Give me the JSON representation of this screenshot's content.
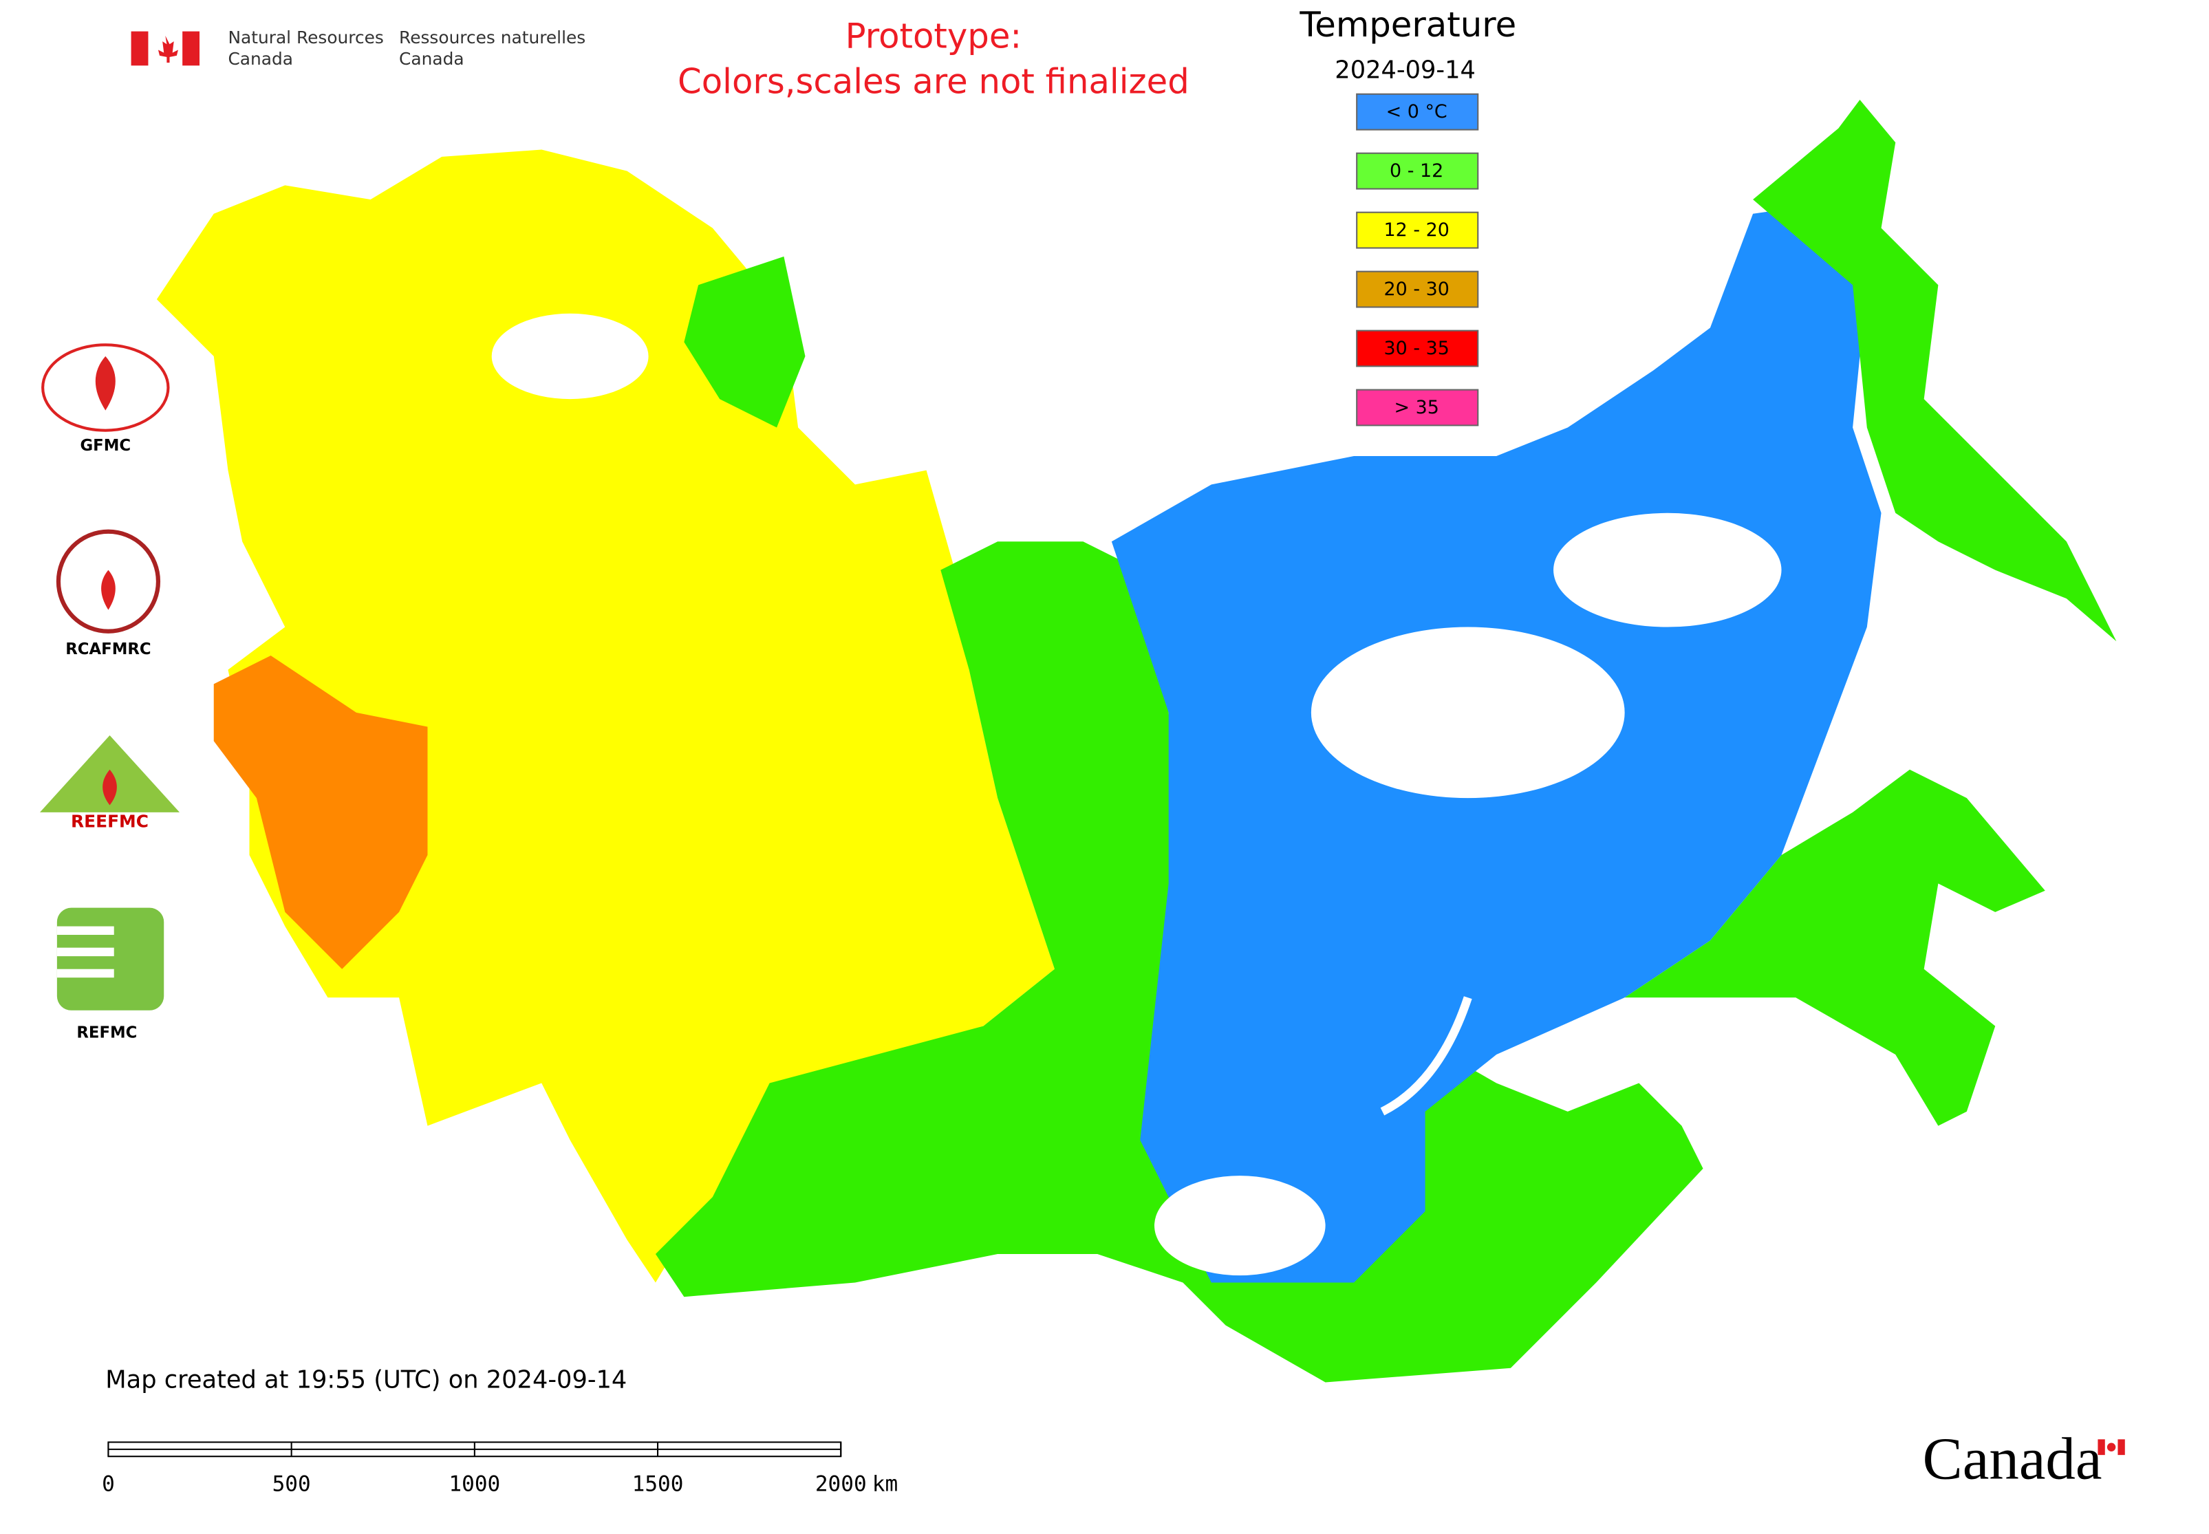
{
  "header": {
    "department_en": [
      "Natural Resources",
      "Canada"
    ],
    "department_fr": [
      "Ressources naturelles",
      "Canada"
    ],
    "wordmark": "Canada"
  },
  "notice": [
    "Prototype:",
    "Colors,scales are not finalized"
  ],
  "legend": {
    "title": "Temperature",
    "date": "2024-09-14",
    "items": [
      {
        "label": "< 0 °C",
        "color": "#3391ff"
      },
      {
        "label": "0 - 12",
        "color": "#66ff33"
      },
      {
        "label": "12 - 20",
        "color": "#ffff00"
      },
      {
        "label": "20 - 30",
        "color": "#e0a000"
      },
      {
        "label": "30 - 35",
        "color": "#ff0000"
      },
      {
        "label": "> 35",
        "color": "#ff3399"
      }
    ]
  },
  "logos": [
    "GFMC",
    "RCAFMRC",
    "REEFMC",
    "REFMC"
  ],
  "footer": "Map created at 19:55 (UTC) on 2024-09-14",
  "scale_bar": {
    "ticks": [
      0,
      500,
      1000,
      1500,
      2000
    ],
    "unit": "km"
  }
}
